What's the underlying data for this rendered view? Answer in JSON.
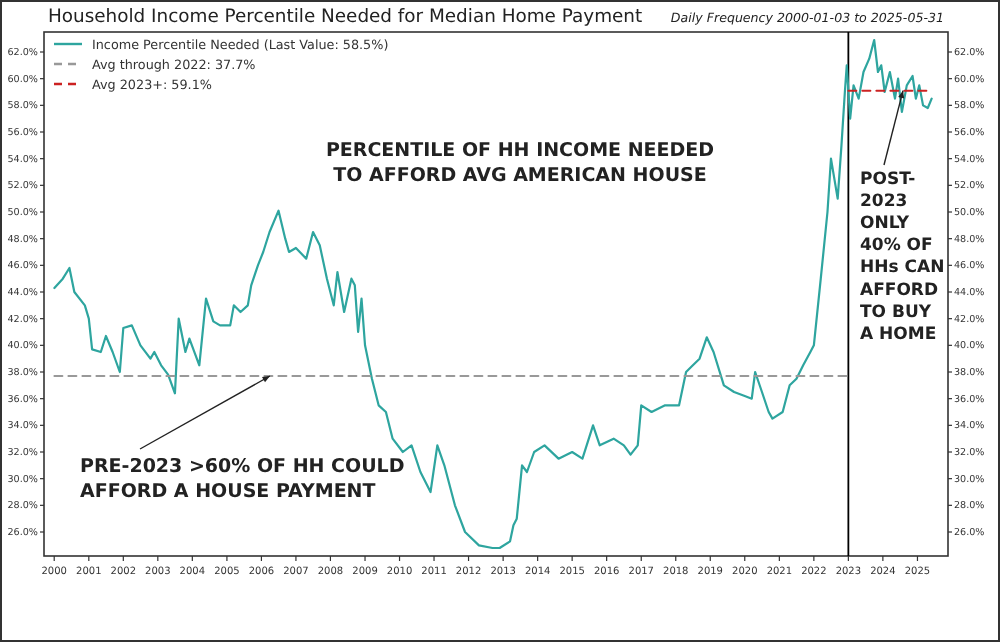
{
  "chart_data": {
    "type": "line",
    "title": "Household Income Percentile Needed for Median Home Payment",
    "subtitle": "Daily Frequency 2000-01-03 to 2025-05-31",
    "legend": "top left",
    "grid": false,
    "annotations": [
      "PERCENTILE OF HH INCOME NEEDED TO AFFORD AVG AMERICAN HOUSE",
      {
        "text": "PRE-2023 >60% OF HH COULD AFFORD A HOUSE PAYMENT",
        "x": "2006-04-01",
        "y": 37.7
      },
      {
        "text": "POST-2023 ONLY 40% OF HHs CAN AFFORD TO BUY A HOME",
        "x": "2024-08-01",
        "y": 59.1
      }
    ],
    "xlim": [
      "1999-09-15",
      "2025-11-20"
    ],
    "xticks": [
      {
        "value": "2000-01-01",
        "label": "2000"
      },
      {
        "value": "2001-01-01",
        "label": "2001"
      },
      {
        "value": "2002-01-01",
        "label": "2002"
      },
      {
        "value": "2003-01-01",
        "label": "2003"
      },
      {
        "value": "2004-01-01",
        "label": "2004"
      },
      {
        "value": "2005-01-01",
        "label": "2005"
      },
      {
        "value": "2006-01-01",
        "label": "2006"
      },
      {
        "value": "2007-01-01",
        "label": "2007"
      },
      {
        "value": "2008-01-01",
        "label": "2008"
      },
      {
        "value": "2009-01-01",
        "label": "2009"
      },
      {
        "value": "2010-01-01",
        "label": "2010"
      },
      {
        "value": "2011-01-01",
        "label": "2011"
      },
      {
        "value": "2012-01-01",
        "label": "2012"
      },
      {
        "value": "2013-01-01",
        "label": "2013"
      },
      {
        "value": "2014-01-01",
        "label": "2014"
      },
      {
        "value": "2015-01-01",
        "label": "2015"
      },
      {
        "value": "2016-01-01",
        "label": "2016"
      },
      {
        "value": "2017-01-01",
        "label": "2017"
      },
      {
        "value": "2018-01-01",
        "label": "2018"
      },
      {
        "value": "2019-01-01",
        "label": "2019"
      },
      {
        "value": "2020-01-01",
        "label": "2020"
      },
      {
        "value": "2021-01-01",
        "label": "2021"
      },
      {
        "value": "2022-01-01",
        "label": "2022"
      },
      {
        "value": "2023-01-01",
        "label": "2023"
      },
      {
        "value": "2024-01-01",
        "label": "2024"
      },
      {
        "value": "2025-01-01",
        "label": "2025"
      }
    ],
    "ylim": [
      24.2,
      63.5
    ],
    "yticks": [
      {
        "value": 26,
        "label": "26.0%"
      },
      {
        "value": 28,
        "label": "28.0%"
      },
      {
        "value": 30,
        "label": "30.0%"
      },
      {
        "value": 32,
        "label": "32.0%"
      },
      {
        "value": 34,
        "label": "34.0%"
      },
      {
        "value": 36,
        "label": "36.0%"
      },
      {
        "value": 38,
        "label": "38.0%"
      },
      {
        "value": 40,
        "label": "40.0%"
      },
      {
        "value": 42,
        "label": "42.0%"
      },
      {
        "value": 44,
        "label": "44.0%"
      },
      {
        "value": 46,
        "label": "46.0%"
      },
      {
        "value": 48,
        "label": "48.0%"
      },
      {
        "value": 50,
        "label": "50.0%"
      },
      {
        "value": 52,
        "label": "52.0%"
      },
      {
        "value": 54,
        "label": "54.0%"
      },
      {
        "value": 56,
        "label": "56.0%"
      },
      {
        "value": 58,
        "label": "58.0%"
      },
      {
        "value": 60,
        "label": "60.0%"
      },
      {
        "value": 62,
        "label": "62.0%"
      }
    ],
    "y2lim": [
      24.2,
      63.5
    ],
    "y2ticks": [
      {
        "value": 26,
        "label": "26.0%"
      },
      {
        "value": 28,
        "label": "28.0%"
      },
      {
        "value": 30,
        "label": "30.0%"
      },
      {
        "value": 32,
        "label": "32.0%"
      },
      {
        "value": 34,
        "label": "34.0%"
      },
      {
        "value": 36,
        "label": "36.0%"
      },
      {
        "value": 38,
        "label": "38.0%"
      },
      {
        "value": 40,
        "label": "40.0%"
      },
      {
        "value": 42,
        "label": "42.0%"
      },
      {
        "value": 44,
        "label": "44.0%"
      },
      {
        "value": 46,
        "label": "46.0%"
      },
      {
        "value": 48,
        "label": "48.0%"
      },
      {
        "value": 50,
        "label": "50.0%"
      },
      {
        "value": 52,
        "label": "52.0%"
      },
      {
        "value": 54,
        "label": "54.0%"
      },
      {
        "value": 56,
        "label": "56.0%"
      },
      {
        "value": 58,
        "label": "58.0%"
      },
      {
        "value": 60,
        "label": "60.0%"
      },
      {
        "value": 62,
        "label": "62.0%"
      }
    ],
    "ref_lines": [
      {
        "axis": "x",
        "value": "2023-01-01",
        "color": "#000000",
        "line_style": "solid"
      }
    ],
    "series": [
      {
        "name": "Income Percentile Needed (Last Value: 58.5%)",
        "color": "#2ea59f",
        "line_style": "solid",
        "x": [
          "2000-01-03",
          "2000-04-01",
          "2000-06-10",
          "2000-08-01",
          "2000-11-20",
          "2001-01-01",
          "2001-02-05",
          "2001-05-08",
          "2001-07-01",
          "2001-09-10",
          "2001-11-25",
          "2002-01-01",
          "2002-04-01",
          "2002-07-01",
          "2002-10-15",
          "2002-11-25",
          "2003-02-05",
          "2003-04-20",
          "2003-07-01",
          "2003-08-10",
          "2003-10-20",
          "2003-12-01",
          "2004-03-15",
          "2004-05-25",
          "2004-08-10",
          "2004-10-20",
          "2005-02-05",
          "2005-03-15",
          "2005-05-25",
          "2005-08-10",
          "2005-09-15",
          "2005-11-25",
          "2006-01-20",
          "2006-03-28",
          "2006-07-01",
          "2006-09-10",
          "2006-10-20",
          "2007-01-01",
          "2007-04-20",
          "2007-07-01",
          "2007-09-10",
          "2007-11-25",
          "2008-02-05",
          "2008-03-15",
          "2008-05-25",
          "2008-08-10",
          "2008-09-15",
          "2008-10-20",
          "2008-11-25",
          "2009-01-01",
          "2009-03-15",
          "2009-05-25",
          "2009-08-10",
          "2009-10-20",
          "2010-02-05",
          "2010-05-08",
          "2010-08-10",
          "2010-11-25",
          "2011-02-05",
          "2011-04-20",
          "2011-08-10",
          "2011-11-25",
          "2012-04-20",
          "2012-09-10",
          "2012-11-25",
          "2013-03-15",
          "2013-04-20",
          "2013-05-25",
          "2013-07-20",
          "2013-09-10",
          "2013-11-25",
          "2014-03-15",
          "2014-08-10",
          "2015-01-01",
          "2015-04-20",
          "2015-08-10",
          "2015-10-20",
          "2016-03-15",
          "2016-07-01",
          "2016-09-10",
          "2016-11-25",
          "2017-01-01",
          "2017-04-20",
          "2017-09-10",
          "2018-02-05",
          "2018-04-20",
          "2018-07-01",
          "2018-09-10",
          "2018-11-25",
          "2019-02-05",
          "2019-05-25",
          "2019-09-10",
          "2020-01-01",
          "2020-03-15",
          "2020-04-20",
          "2020-07-01",
          "2020-09-10",
          "2020-10-20",
          "2021-02-05",
          "2021-04-20",
          "2021-07-01",
          "2021-09-10",
          "2021-11-25",
          "2022-01-01",
          "2022-03-15",
          "2022-05-25",
          "2022-07-01",
          "2022-09-10",
          "2022-10-20",
          "2022-11-25",
          "2022-12-15",
          "2023-01-20",
          "2023-02-25",
          "2023-04-20",
          "2023-06-10",
          "2023-08-10",
          "2023-10-01",
          "2023-11-10",
          "2023-12-15",
          "2024-01-20",
          "2024-03-15",
          "2024-05-08",
          "2024-06-10",
          "2024-07-20",
          "2024-09-10",
          "2024-11-10",
          "2024-12-15",
          "2025-01-20",
          "2025-03-01",
          "2025-04-20",
          "2025-05-31"
        ],
        "values": [
          44.3,
          45.0,
          45.8,
          44.0,
          43.0,
          42.0,
          39.7,
          39.5,
          40.7,
          39.5,
          38.0,
          41.3,
          41.5,
          40.0,
          39.0,
          39.5,
          38.5,
          37.8,
          36.4,
          42.0,
          39.5,
          40.5,
          38.5,
          43.5,
          41.8,
          41.5,
          41.5,
          43.0,
          42.5,
          43.0,
          44.5,
          46.0,
          47.0,
          48.5,
          50.1,
          48.0,
          47.0,
          47.3,
          46.5,
          48.5,
          47.5,
          45.0,
          43.0,
          45.5,
          42.5,
          45.0,
          44.5,
          41.0,
          43.5,
          40.0,
          37.5,
          35.5,
          35.0,
          33.0,
          32.0,
          32.5,
          30.5,
          29.0,
          32.5,
          31.0,
          28.0,
          26.0,
          25.0,
          24.8,
          24.8,
          25.3,
          26.5,
          27.0,
          31.0,
          30.5,
          32.0,
          32.5,
          31.5,
          32.0,
          31.5,
          34.0,
          32.5,
          33.0,
          32.5,
          31.8,
          32.5,
          35.5,
          35.0,
          35.5,
          35.5,
          38.0,
          38.5,
          39.0,
          40.6,
          39.5,
          37.0,
          36.5,
          36.2,
          36.0,
          38.0,
          36.5,
          35.0,
          34.5,
          35.0,
          37.0,
          37.5,
          38.5,
          39.5,
          40.0,
          45.0,
          50.0,
          54.0,
          51.0,
          55.0,
          59.0,
          61.0,
          57.0,
          59.5,
          58.5,
          60.5,
          61.5,
          62.9,
          60.5,
          61.0,
          59.0,
          60.5,
          58.5,
          60.0,
          57.5,
          59.5,
          60.2,
          58.5,
          59.5,
          58.0,
          57.8,
          58.5
        ]
      },
      {
        "name": "Avg through 2022: 37.7%",
        "color": "#999999",
        "line_style": "dashed",
        "x": [
          "2000-01-03",
          "2023-01-01"
        ],
        "values": [
          37.7,
          37.7
        ]
      },
      {
        "name": "Avg 2023+: 59.1%",
        "color": "#cc2222",
        "line_style": "dashed",
        "x": [
          "2023-01-01",
          "2025-05-31"
        ],
        "values": [
          59.1,
          59.1
        ]
      }
    ]
  }
}
